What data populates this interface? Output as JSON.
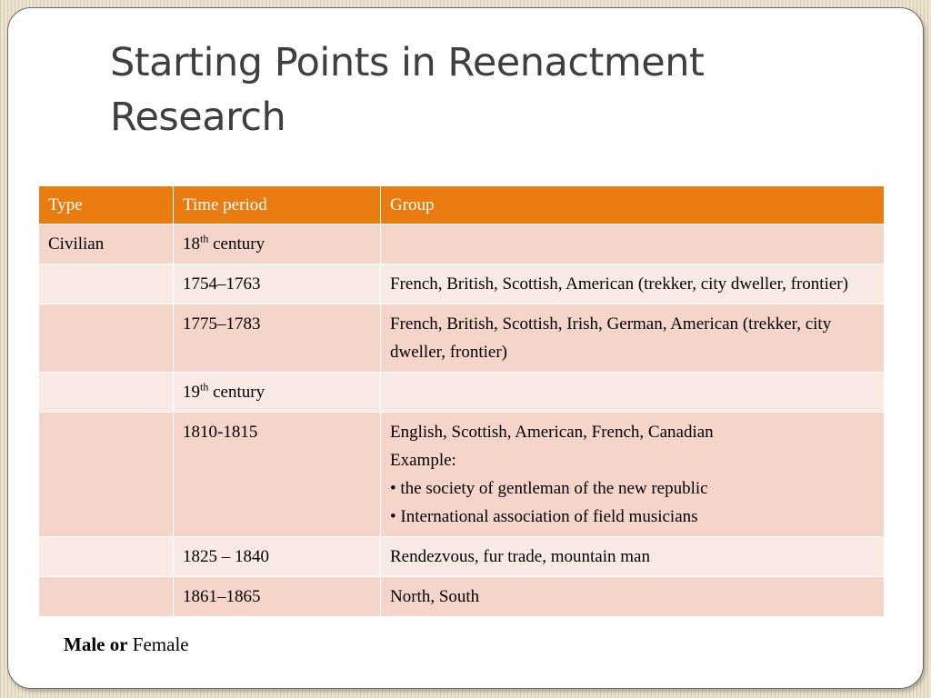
{
  "slide": {
    "title": "Starting Points in Reenactment Research",
    "table": {
      "headers": [
        "Type",
        "Time period",
        "Group"
      ],
      "rows": [
        {
          "type": "Civilian",
          "period_base": "18",
          "period_sup": "th",
          "period_rest": " century",
          "group_lines": []
        },
        {
          "type": "",
          "period": "1754–1763",
          "group_lines": [
            "French, British, Scottish, American (trekker, city dweller, frontier)"
          ]
        },
        {
          "type": "",
          "period": "1775–1783",
          "group_lines": [
            "French, British, Scottish, Irish, German, American (trekker, city dweller, frontier)"
          ]
        },
        {
          "type": "",
          "period_base": "19",
          "period_sup": "th",
          "period_rest": " century",
          "group_lines": []
        },
        {
          "type": "",
          "period": "1810-1815",
          "group_lines": [
            "English, Scottish, American, French, Canadian",
            "Example:"
          ],
          "bullets": [
            "the society of gentleman of the new republic",
            "International association of field musicians"
          ]
        },
        {
          "type": "",
          "period": "1825 – 1840",
          "group_lines": [
            "Rendezvous, fur trade, mountain man"
          ]
        },
        {
          "type": "",
          "period": "1861–1865",
          "group_lines": [
            "North, South"
          ]
        }
      ]
    },
    "footnote": {
      "bold_text": "Male or",
      "normal_text": " Female"
    }
  },
  "colors": {
    "header": "#ea7c0f",
    "row_odd": "#f5d4c9",
    "row_even": "#faeae5",
    "background": "#e6dcc3"
  }
}
